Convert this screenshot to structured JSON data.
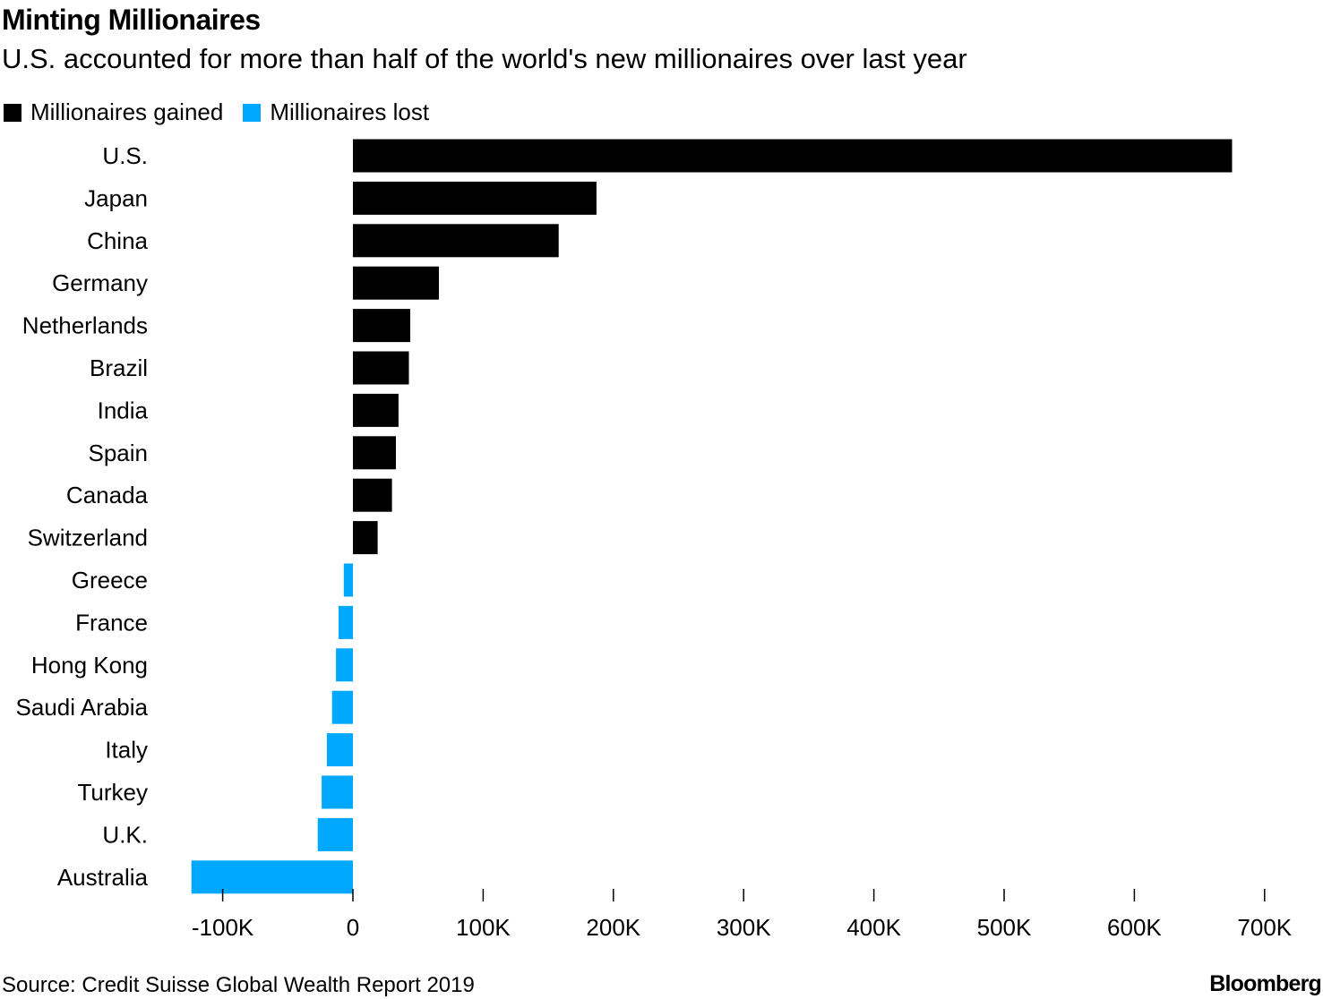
{
  "chart_data": {
    "type": "bar",
    "orientation": "horizontal",
    "title": "Minting Millionaires",
    "subtitle": "U.S. accounted for more than half of the world's new millionaires over last year",
    "xlim": [
      -124000,
      700000
    ],
    "xticks": [
      -100000,
      0,
      100000,
      200000,
      300000,
      400000,
      500000,
      600000,
      700000
    ],
    "xtick_labels": [
      "-100K",
      "0",
      "100K",
      "200K",
      "300K",
      "400K",
      "500K",
      "600K",
      "700K"
    ],
    "legend": [
      {
        "name": "Millionaires gained",
        "color": "#000000"
      },
      {
        "name": "Millionaires lost",
        "color": "#00a8ff"
      }
    ],
    "categories": [
      "U.S.",
      "Japan",
      "China",
      "Germany",
      "Netherlands",
      "Brazil",
      "India",
      "Spain",
      "Canada",
      "Switzerland",
      "Greece",
      "France",
      "Hong Kong",
      "Saudi Arabia",
      "Italy",
      "Turkey",
      "U.K.",
      "Australia"
    ],
    "values": [
      675000,
      187000,
      158000,
      66000,
      44000,
      43000,
      35000,
      33000,
      30000,
      19000,
      -7000,
      -11000,
      -13000,
      -16000,
      -20000,
      -24000,
      -27000,
      -124000
    ]
  },
  "source": "Source: Credit Suisse Global Wealth Report 2019",
  "brand": "Bloomberg",
  "colors": {
    "gained": "#000000",
    "lost": "#00a8ff"
  }
}
